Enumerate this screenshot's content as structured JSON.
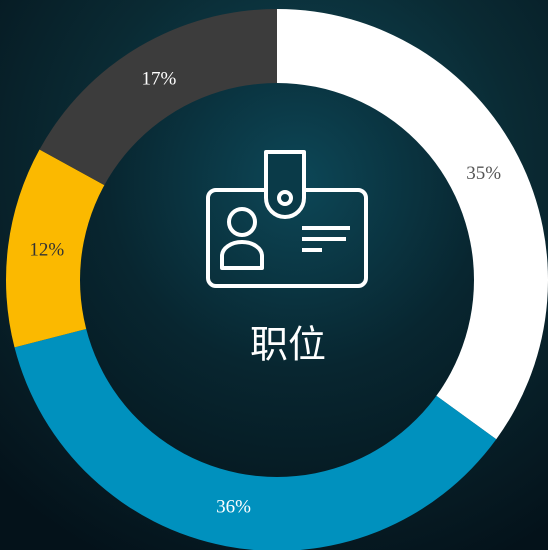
{
  "chart_data": {
    "type": "pie",
    "donut": true,
    "center_label": "职位",
    "values": [
      35,
      36,
      12,
      17
    ],
    "value_labels": [
      "35%",
      "36%",
      "12%",
      "17%"
    ],
    "colors": [
      "#ffffff",
      "#0091be",
      "#fbb900",
      "#3c3c3c"
    ],
    "label_colors": [
      "#555555",
      "#ffffff",
      "#333333",
      "#ffffff"
    ]
  }
}
